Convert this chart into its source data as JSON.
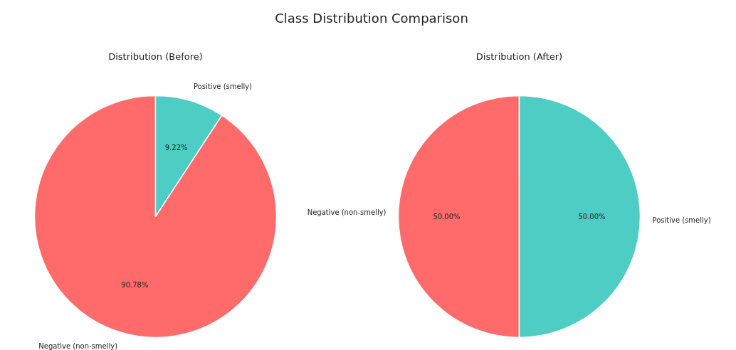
{
  "chart_data": [
    {
      "type": "pie",
      "title": "Distribution (Before)",
      "annotations": [
        "Class Distribution Comparison"
      ],
      "categories": [
        "Negative (non-smelly)",
        "Positive (smelly)"
      ],
      "values": [
        90.78,
        9.22
      ],
      "value_labels": [
        "90.78%",
        "9.22%"
      ],
      "colors": [
        "#ff6b6b",
        "#4ecdc4"
      ]
    },
    {
      "type": "pie",
      "title": "Distribution (After)",
      "categories": [
        "Negative (non-smelly)",
        "Positive (smelly)"
      ],
      "values": [
        50.0,
        50.0
      ],
      "value_labels": [
        "50.00%",
        "50.00%"
      ],
      "colors": [
        "#ff6b6b",
        "#4ecdc4"
      ]
    }
  ]
}
